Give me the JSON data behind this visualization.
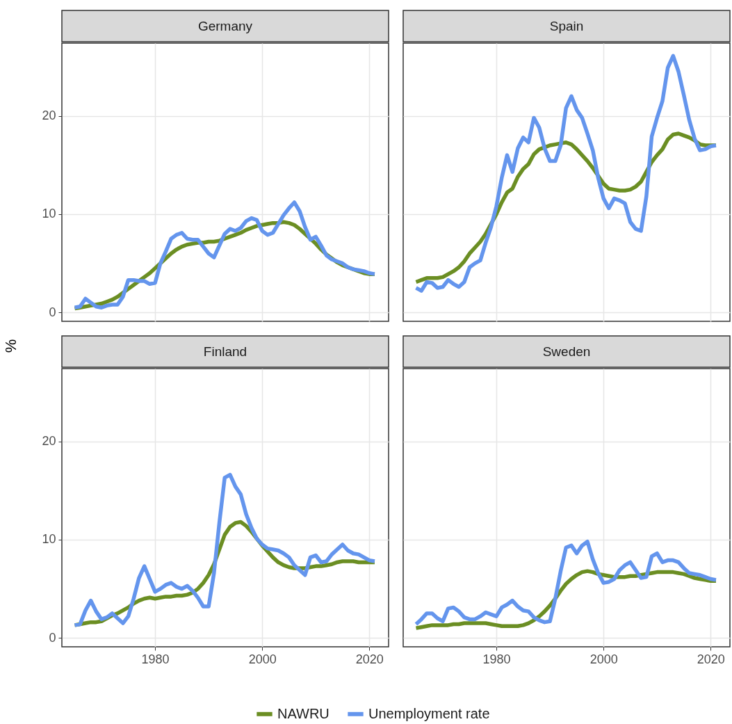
{
  "chart_data": [
    {
      "type": "line",
      "title": "Germany",
      "legend": "bottom",
      "x": [
        1965,
        1966,
        1967,
        1968,
        1969,
        1970,
        1971,
        1972,
        1973,
        1974,
        1975,
        1976,
        1977,
        1978,
        1979,
        1980,
        1981,
        1982,
        1983,
        1984,
        1985,
        1986,
        1987,
        1988,
        1989,
        1990,
        1991,
        1992,
        1993,
        1994,
        1995,
        1996,
        1997,
        1998,
        1999,
        2000,
        2001,
        2002,
        2003,
        2004,
        2005,
        2006,
        2007,
        2008,
        2009,
        2010,
        2011,
        2012,
        2013,
        2014,
        2015,
        2016,
        2017,
        2018,
        2019,
        2020,
        2021
      ],
      "xlim": [
        1962.6,
        2023.6
      ],
      "xticks": [
        1980,
        2000,
        2020
      ],
      "ylim": [
        -0.9,
        27.4
      ],
      "yticks": [
        0,
        10,
        20
      ],
      "grid": true,
      "tick_labels": "y",
      "line_style": "solid",
      "series": [
        {
          "name": "NAWRU",
          "color": "#6b8e23",
          "values": [
            0.4,
            0.5,
            0.6,
            0.7,
            0.8,
            0.9,
            1.1,
            1.3,
            1.6,
            2.0,
            2.4,
            2.8,
            3.2,
            3.6,
            4.0,
            4.5,
            5.0,
            5.5,
            6.0,
            6.4,
            6.7,
            6.9,
            7.0,
            7.1,
            7.1,
            7.2,
            7.2,
            7.3,
            7.5,
            7.7,
            7.9,
            8.1,
            8.4,
            8.6,
            8.8,
            8.9,
            9.0,
            9.1,
            9.1,
            9.2,
            9.1,
            8.9,
            8.5,
            8.0,
            7.5,
            7.0,
            6.4,
            5.9,
            5.5,
            5.1,
            4.8,
            4.6,
            4.4,
            4.2,
            4.0,
            3.9,
            3.9
          ]
        },
        {
          "name": "Unemployment rate",
          "color": "#6495ed",
          "values": [
            0.5,
            0.6,
            1.4,
            1.0,
            0.6,
            0.5,
            0.7,
            0.8,
            0.8,
            1.6,
            3.3,
            3.3,
            3.2,
            3.2,
            2.9,
            3.0,
            5.0,
            6.2,
            7.5,
            7.9,
            8.1,
            7.5,
            7.4,
            7.4,
            6.7,
            6.0,
            5.6,
            6.8,
            8.0,
            8.5,
            8.3,
            8.6,
            9.3,
            9.6,
            9.4,
            8.3,
            7.9,
            8.1,
            9.0,
            9.9,
            10.6,
            11.2,
            10.3,
            8.7,
            7.4,
            7.7,
            6.8,
            5.8,
            5.4,
            5.2,
            5.0,
            4.6,
            4.4,
            4.3,
            4.2,
            4.0,
            3.9
          ]
        }
      ]
    },
    {
      "type": "line",
      "title": "Spain",
      "x": [
        1965,
        1966,
        1967,
        1968,
        1969,
        1970,
        1971,
        1972,
        1973,
        1974,
        1975,
        1976,
        1977,
        1978,
        1979,
        1980,
        1981,
        1982,
        1983,
        1984,
        1985,
        1986,
        1987,
        1988,
        1989,
        1990,
        1991,
        1992,
        1993,
        1994,
        1995,
        1996,
        1997,
        1998,
        1999,
        2000,
        2001,
        2002,
        2003,
        2004,
        2005,
        2006,
        2007,
        2008,
        2009,
        2010,
        2011,
        2012,
        2013,
        2014,
        2015,
        2016,
        2017,
        2018,
        2019,
        2020,
        2021
      ],
      "xlim": [
        1962.6,
        2023.6
      ],
      "xticks": [
        1980,
        2000,
        2020
      ],
      "ylim": [
        -0.9,
        27.4
      ],
      "yticks": [
        0,
        10,
        20
      ],
      "grid": true,
      "tick_labels": false,
      "line_style": "solid",
      "series": [
        {
          "color": "#6b8e23",
          "values": [
            3.1,
            3.3,
            3.5,
            3.5,
            3.5,
            3.6,
            3.9,
            4.2,
            4.6,
            5.2,
            6.0,
            6.6,
            7.2,
            8.0,
            9.0,
            10.0,
            11.2,
            12.2,
            12.6,
            13.8,
            14.6,
            15.1,
            16.1,
            16.6,
            16.8,
            17.0,
            17.1,
            17.2,
            17.3,
            17.1,
            16.6,
            16.0,
            15.4,
            14.7,
            13.9,
            13.1,
            12.6,
            12.5,
            12.4,
            12.4,
            12.5,
            12.8,
            13.3,
            14.3,
            15.3,
            16.0,
            16.6,
            17.6,
            18.1,
            18.2,
            18.0,
            17.8,
            17.5,
            17.1,
            17.0,
            17.0,
            17.0
          ]
        },
        {
          "color": "#6495ed",
          "values": [
            2.5,
            2.2,
            3.1,
            3.0,
            2.5,
            2.6,
            3.3,
            2.9,
            2.6,
            3.1,
            4.6,
            5.0,
            5.3,
            7.1,
            8.7,
            10.8,
            13.7,
            16.0,
            14.3,
            16.7,
            17.8,
            17.3,
            19.8,
            18.8,
            16.7,
            15.4,
            15.4,
            17.0,
            20.8,
            22.0,
            20.6,
            19.8,
            18.2,
            16.5,
            13.7,
            11.6,
            10.6,
            11.6,
            11.4,
            11.1,
            9.2,
            8.5,
            8.3,
            11.8,
            17.9,
            19.8,
            21.5,
            24.9,
            26.1,
            24.5,
            22.1,
            19.6,
            17.7,
            16.5,
            16.6,
            16.9,
            17.0
          ]
        }
      ]
    },
    {
      "type": "line",
      "title": "Finland",
      "ylabel": "%",
      "x": [
        1965,
        1966,
        1967,
        1968,
        1969,
        1970,
        1971,
        1972,
        1973,
        1974,
        1975,
        1976,
        1977,
        1978,
        1979,
        1980,
        1981,
        1982,
        1983,
        1984,
        1985,
        1986,
        1987,
        1988,
        1989,
        1990,
        1991,
        1992,
        1993,
        1994,
        1995,
        1996,
        1997,
        1998,
        1999,
        2000,
        2001,
        2002,
        2003,
        2004,
        2005,
        2006,
        2007,
        2008,
        2009,
        2010,
        2011,
        2012,
        2013,
        2014,
        2015,
        2016,
        2017,
        2018,
        2019,
        2020,
        2021
      ],
      "xlim": [
        1962.6,
        2023.6
      ],
      "xticks": [
        1980,
        2000,
        2020
      ],
      "ylim": [
        -0.9,
        27.4
      ],
      "yticks": [
        0,
        10,
        20
      ],
      "grid": true,
      "line_style": "solid",
      "series": [
        {
          "color": "#6b8e23",
          "values": [
            1.3,
            1.4,
            1.5,
            1.6,
            1.6,
            1.7,
            2.0,
            2.3,
            2.5,
            2.8,
            3.1,
            3.5,
            3.8,
            4.0,
            4.1,
            4.0,
            4.1,
            4.2,
            4.2,
            4.3,
            4.3,
            4.4,
            4.6,
            5.0,
            5.6,
            6.4,
            7.5,
            9.0,
            10.5,
            11.3,
            11.7,
            11.8,
            11.4,
            10.8,
            10.1,
            9.4,
            8.8,
            8.2,
            7.7,
            7.4,
            7.2,
            7.1,
            7.1,
            7.1,
            7.2,
            7.3,
            7.3,
            7.4,
            7.5,
            7.7,
            7.8,
            7.8,
            7.8,
            7.7,
            7.7,
            7.7,
            7.7
          ]
        },
        {
          "color": "#6495ed",
          "values": [
            1.3,
            1.4,
            2.8,
            3.8,
            2.7,
            1.9,
            2.1,
            2.5,
            2.0,
            1.5,
            2.2,
            4.0,
            6.1,
            7.3,
            6.0,
            4.7,
            5.0,
            5.4,
            5.6,
            5.2,
            5.0,
            5.3,
            4.8,
            4.1,
            3.2,
            3.2,
            6.6,
            11.7,
            16.3,
            16.6,
            15.4,
            14.6,
            12.6,
            11.2,
            10.1,
            9.5,
            9.1,
            9.0,
            8.9,
            8.6,
            8.2,
            7.4,
            6.9,
            6.4,
            8.2,
            8.4,
            7.7,
            7.8,
            8.5,
            9.0,
            9.5,
            8.9,
            8.6,
            8.5,
            8.2,
            7.9,
            7.8
          ]
        }
      ]
    },
    {
      "type": "line",
      "title": "Sweden",
      "x": [
        1965,
        1966,
        1967,
        1968,
        1969,
        1970,
        1971,
        1972,
        1973,
        1974,
        1975,
        1976,
        1977,
        1978,
        1979,
        1980,
        1981,
        1982,
        1983,
        1984,
        1985,
        1986,
        1987,
        1988,
        1989,
        1990,
        1991,
        1992,
        1993,
        1994,
        1995,
        1996,
        1997,
        1998,
        1999,
        2000,
        2001,
        2002,
        2003,
        2004,
        2005,
        2006,
        2007,
        2008,
        2009,
        2010,
        2011,
        2012,
        2013,
        2014,
        2015,
        2016,
        2017,
        2018,
        2019,
        2020,
        2021
      ],
      "xlim": [
        1962.6,
        2023.6
      ],
      "xticks": [
        1980,
        2000,
        2020
      ],
      "ylim": [
        -0.9,
        27.4
      ],
      "yticks": [
        0,
        10,
        20
      ],
      "grid": true,
      "tick_labels": "x",
      "line_style": "solid",
      "series": [
        {
          "color": "#6b8e23",
          "values": [
            1.0,
            1.1,
            1.2,
            1.3,
            1.3,
            1.3,
            1.3,
            1.4,
            1.4,
            1.5,
            1.5,
            1.5,
            1.5,
            1.5,
            1.4,
            1.3,
            1.2,
            1.2,
            1.2,
            1.2,
            1.3,
            1.5,
            1.8,
            2.2,
            2.7,
            3.3,
            4.0,
            4.8,
            5.5,
            6.0,
            6.4,
            6.7,
            6.8,
            6.7,
            6.5,
            6.4,
            6.3,
            6.2,
            6.2,
            6.2,
            6.3,
            6.3,
            6.4,
            6.5,
            6.6,
            6.7,
            6.7,
            6.7,
            6.7,
            6.6,
            6.5,
            6.3,
            6.1,
            6.0,
            5.9,
            5.8,
            5.8
          ]
        },
        {
          "color": "#6495ed",
          "values": [
            1.4,
            1.9,
            2.5,
            2.5,
            2.0,
            1.7,
            3.0,
            3.1,
            2.7,
            2.1,
            1.9,
            1.9,
            2.2,
            2.6,
            2.4,
            2.2,
            3.1,
            3.4,
            3.8,
            3.2,
            2.8,
            2.7,
            2.1,
            1.8,
            1.6,
            1.7,
            4.0,
            6.8,
            9.2,
            9.4,
            8.6,
            9.4,
            9.8,
            8.0,
            6.6,
            5.6,
            5.7,
            6.0,
            6.9,
            7.4,
            7.7,
            6.9,
            6.1,
            6.2,
            8.3,
            8.6,
            7.7,
            7.9,
            7.9,
            7.7,
            7.1,
            6.6,
            6.5,
            6.4,
            6.2,
            6.0,
            5.9
          ]
        }
      ]
    }
  ]
}
